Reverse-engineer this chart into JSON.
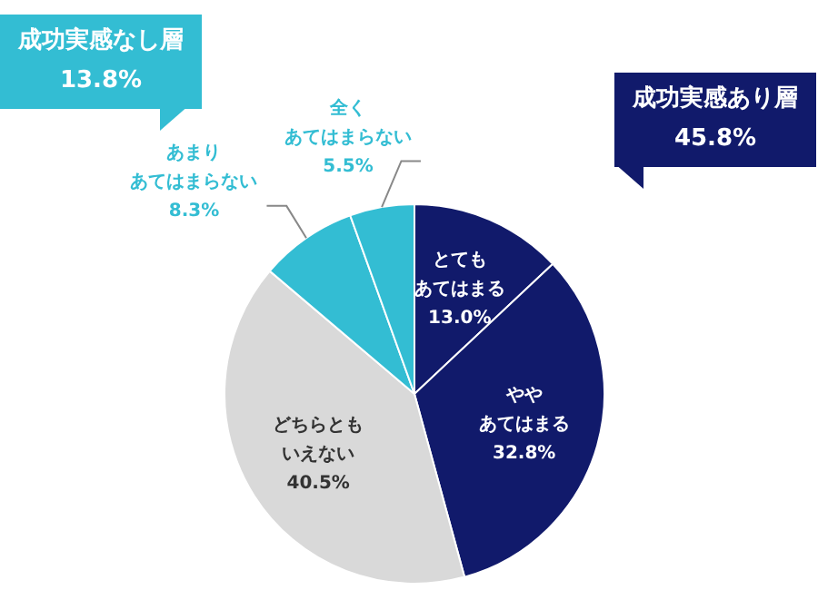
{
  "chart_data": {
    "type": "pie",
    "categories": [
      "とてもあてはまる",
      "ややあてはまる",
      "どちらともいえない",
      "あまりあてはまらない",
      "全くあてはまらない"
    ],
    "values": [
      13.0,
      32.8,
      40.5,
      8.3,
      5.5
    ],
    "value_labels": [
      "13.0%",
      "32.8%",
      "40.5%",
      "8.3%",
      "5.5%"
    ],
    "colors": [
      "#111a6b",
      "#111a6b",
      "#d9d9d9",
      "#33bdd3",
      "#33bdd3"
    ],
    "annotations": [
      "成功実感なし層\n13.8%",
      "成功実感あり層\n45.8%"
    ]
  }
}
